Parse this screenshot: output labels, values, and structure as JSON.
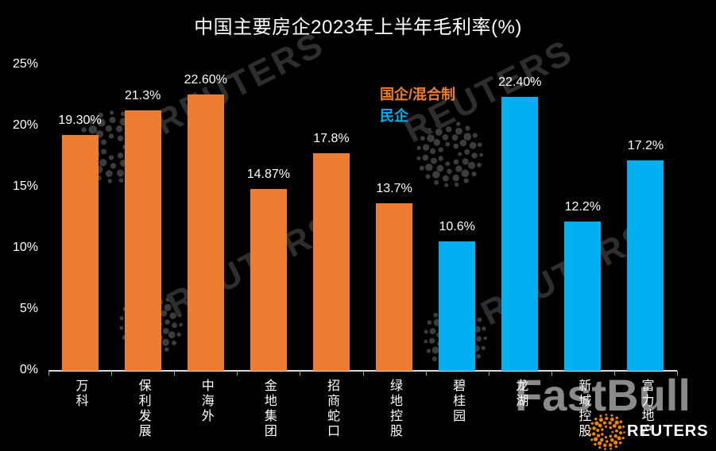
{
  "title": "中国主要房企2023年上半年毛利率(%)",
  "legend": {
    "soe_label": "国企/混合制",
    "private_label": "民企"
  },
  "colors": {
    "soe": "#ED7D31",
    "private": "#00B0F0",
    "axis_line": "#D9D9D9",
    "tick": "#A6A6A6",
    "text": "#FFFFFF",
    "watermark_text": "#2E2E2E",
    "watermark_dots": "#3C3C3C",
    "reuters_logo_orange": "#F28300",
    "fastbull_gray": "#8A8A8A",
    "background": "#000000"
  },
  "watermarks": {
    "reuters_diagonal": "REUTERS",
    "fastbull": "FastBull",
    "reuters_wordmark": "REUTERS"
  },
  "chart_data": {
    "type": "bar",
    "title": "中国主要房企2023年上半年毛利率(%)",
    "categories": [
      "万科",
      "保利发展",
      "中海外",
      "金地集团",
      "招商蛇口",
      "绿地控股",
      "碧桂园",
      "龙湖",
      "新城控股",
      "富力地产"
    ],
    "values": [
      19.3,
      21.3,
      22.6,
      14.87,
      17.8,
      13.7,
      10.6,
      22.4,
      12.2,
      17.2
    ],
    "value_labels": [
      "19.30%",
      "21.3%",
      "22.60%",
      "14.87%",
      "17.8%",
      "13.7%",
      "10.6%",
      "22.40%",
      "12.2%",
      "17.2%"
    ],
    "groups": [
      "soe",
      "soe",
      "soe",
      "soe",
      "soe",
      "soe",
      "private",
      "private",
      "private",
      "private"
    ],
    "series": [
      {
        "name": "国企/混合制",
        "color": "#ED7D31",
        "category_indices": [
          0,
          1,
          2,
          3,
          4,
          5
        ]
      },
      {
        "name": "民企",
        "color": "#00B0F0",
        "category_indices": [
          6,
          7,
          8,
          9
        ]
      }
    ],
    "xlabel": "",
    "ylabel": "",
    "ylim": [
      0,
      25
    ],
    "ytick_labels": [
      "0%",
      "5%",
      "10%",
      "15%",
      "20%",
      "25%"
    ],
    "grid": false,
    "legend_position": "inside-upper-middle"
  }
}
